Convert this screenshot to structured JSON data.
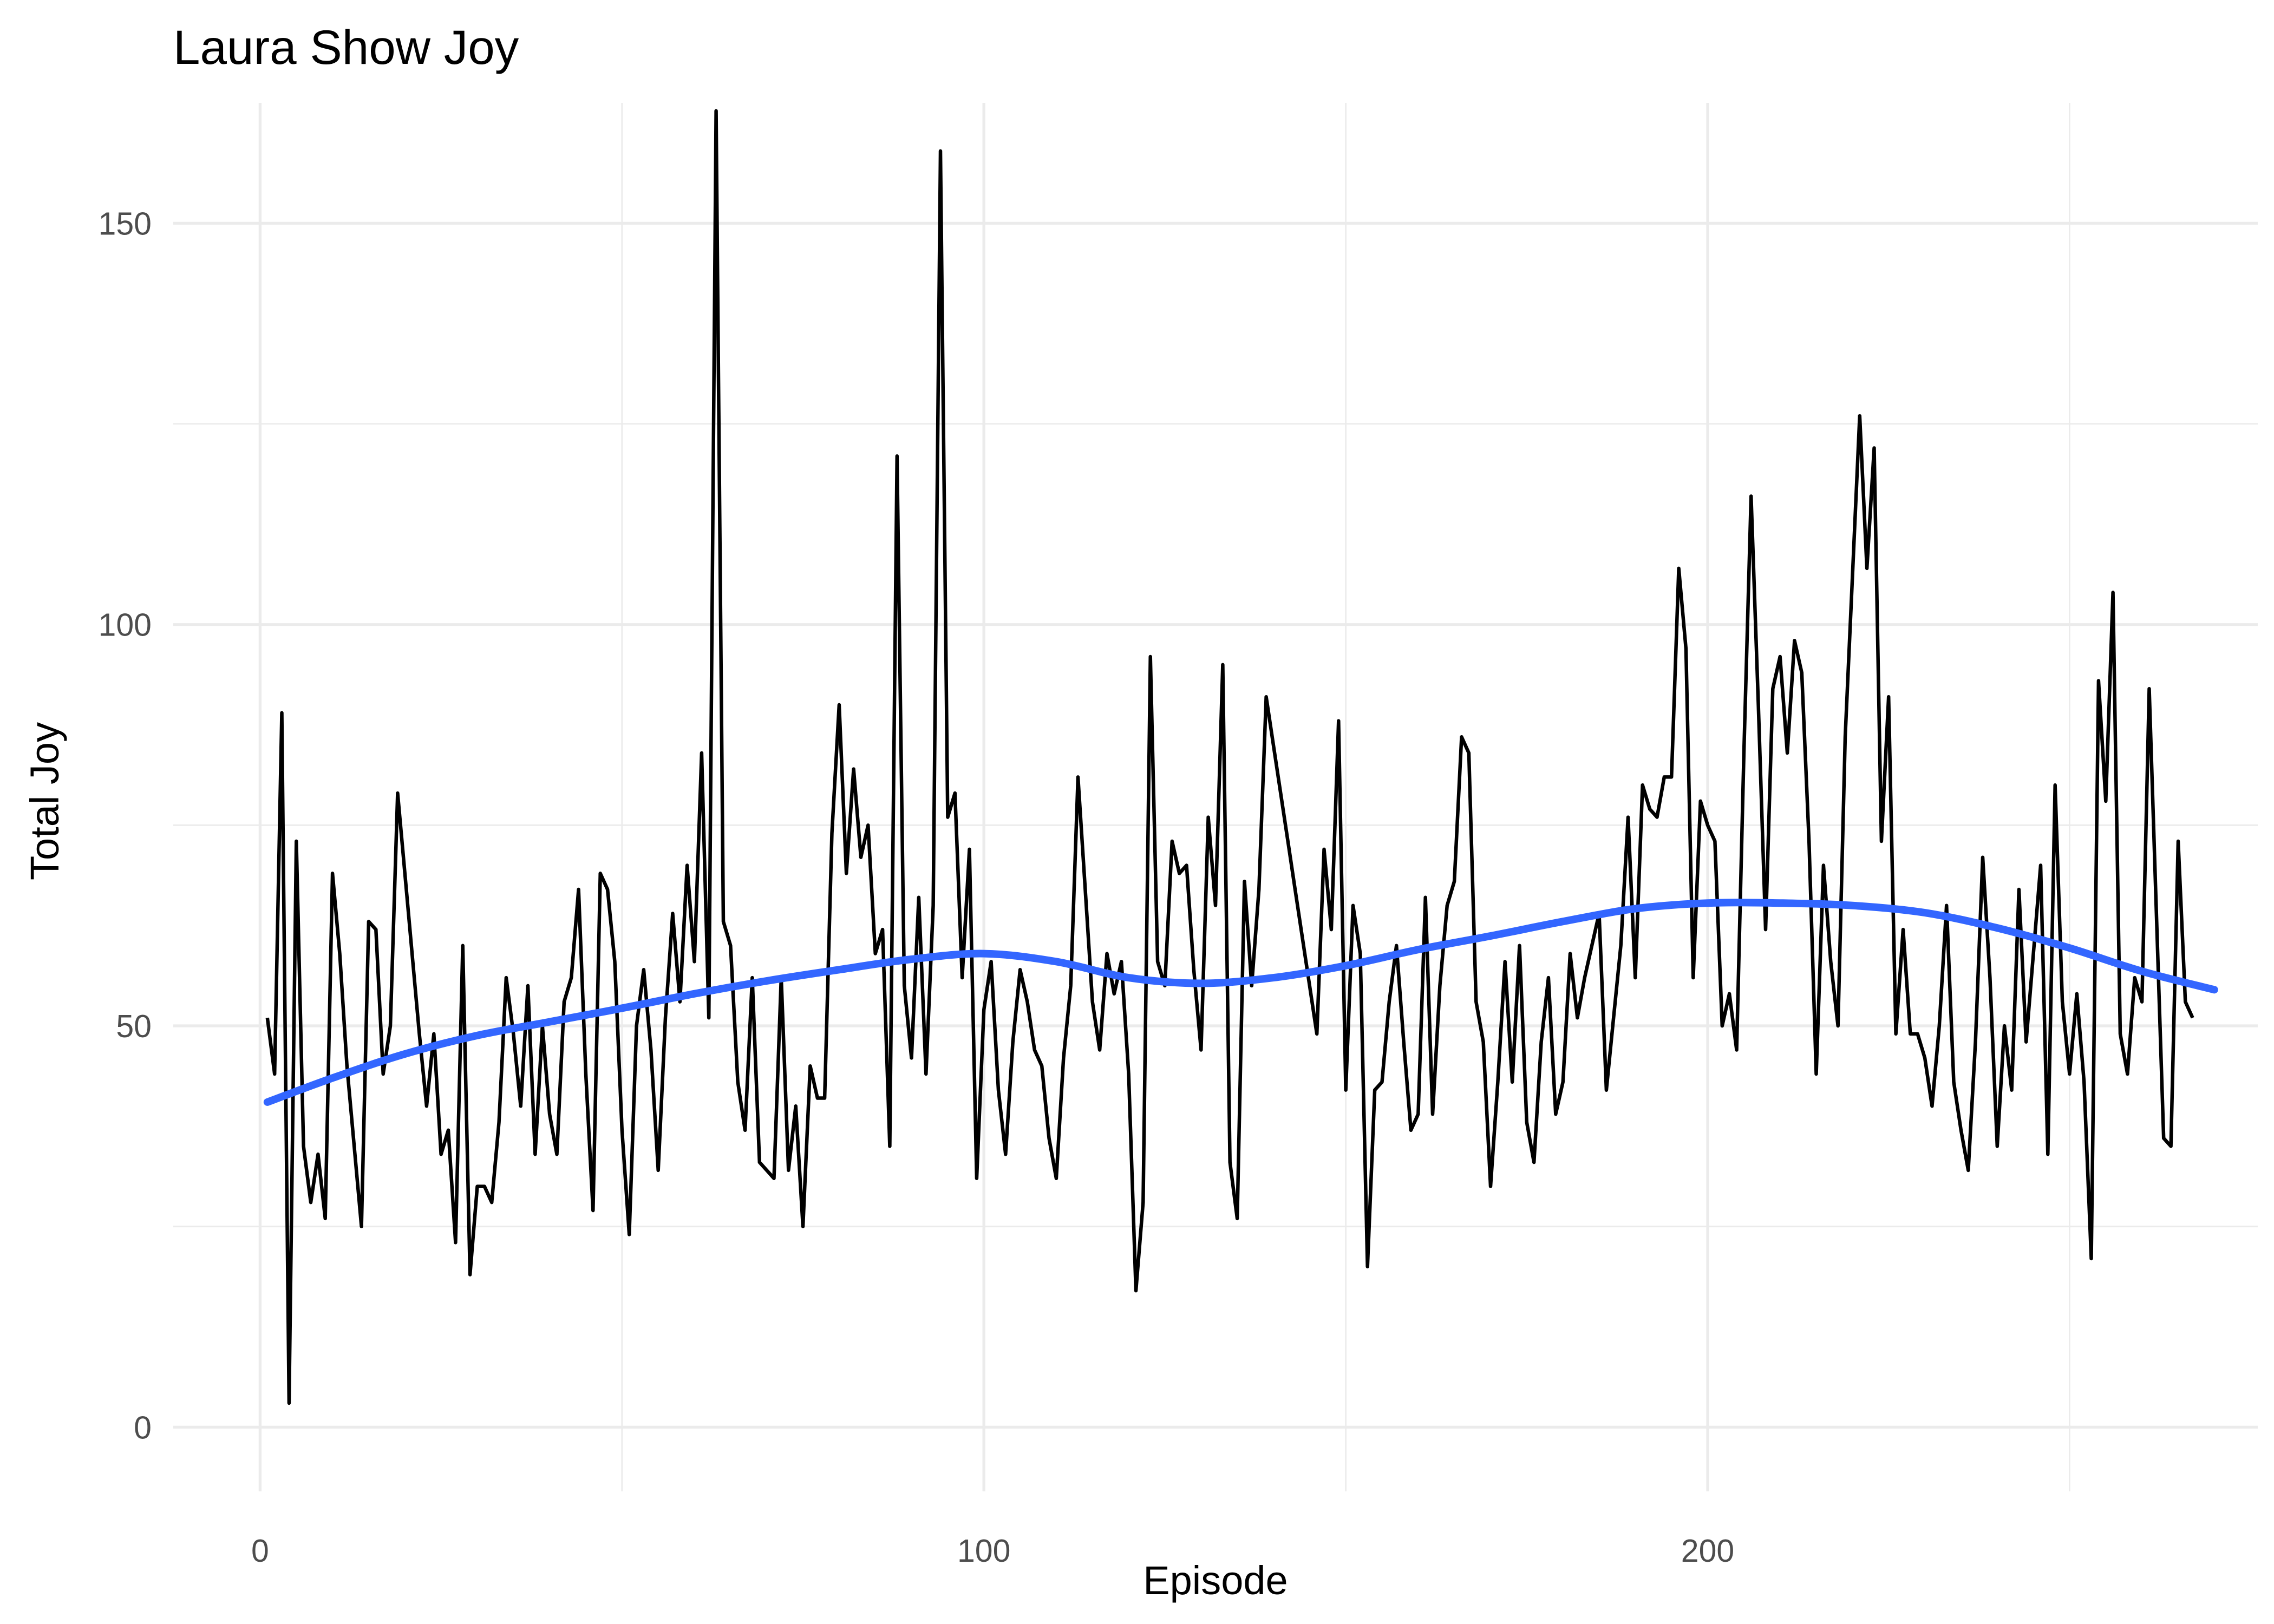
{
  "chart_data": {
    "type": "line",
    "title": "Laura Show Joy",
    "xlabel": "Episode",
    "ylabel": "Total Joy",
    "xlim": [
      -12,
      276
    ],
    "ylim": [
      -8,
      165
    ],
    "x_ticks": [
      0,
      100,
      200
    ],
    "y_ticks": [
      0,
      50,
      100,
      150
    ],
    "x_minor": [
      50,
      150,
      250
    ],
    "y_minor": [
      25,
      75,
      125
    ],
    "x_tick_labels": [
      "0",
      "100",
      "200"
    ],
    "y_tick_labels": [
      "0",
      "50",
      "100",
      "150"
    ],
    "series": [
      {
        "name": "Total Joy",
        "color": "#000000",
        "x_start": 1,
        "values": [
          51,
          44,
          89,
          3,
          73,
          35,
          28,
          34,
          26,
          69,
          59,
          45,
          35,
          25,
          63,
          62,
          44,
          50,
          79,
          69,
          59,
          49,
          40,
          49,
          34,
          37,
          23,
          60,
          19,
          30,
          30,
          28,
          38,
          56,
          49,
          40,
          55,
          34,
          50,
          39,
          34,
          53,
          56,
          67,
          44,
          27,
          69,
          67,
          58,
          37,
          24,
          50,
          57,
          47,
          32,
          51,
          64,
          53,
          70,
          58,
          84,
          51,
          164,
          63,
          60,
          43,
          37,
          56,
          33,
          32,
          31,
          56,
          32,
          40,
          25,
          45,
          41,
          41,
          74,
          90,
          69,
          82,
          71,
          75,
          59,
          62,
          35,
          121,
          55,
          46,
          66,
          44,
          65,
          159,
          76,
          79,
          56,
          72,
          31,
          52,
          58,
          42,
          34,
          48,
          57,
          53,
          47,
          45,
          36,
          31,
          46,
          55,
          81,
          67,
          53,
          47,
          59,
          54,
          58,
          44,
          17,
          28,
          96,
          58,
          55,
          73,
          69,
          70,
          57,
          47,
          76,
          65,
          95,
          33,
          26,
          68,
          55,
          67,
          91,
          85,
          79,
          73,
          67,
          61,
          55,
          49,
          72,
          62,
          88,
          42,
          65,
          59,
          20,
          42,
          43,
          53,
          60,
          48,
          37,
          39,
          66,
          39,
          55,
          65,
          68,
          86,
          84,
          53,
          48,
          30,
          43,
          58,
          43,
          60,
          38,
          33,
          48,
          56,
          39,
          43,
          59,
          51,
          56,
          60,
          64,
          42,
          51,
          60,
          76,
          56,
          80,
          77,
          76,
          81,
          81,
          107,
          97,
          56,
          78,
          75,
          73,
          50,
          54,
          47,
          84,
          116,
          90,
          62,
          92,
          96,
          84,
          98,
          94,
          73,
          44,
          70,
          58,
          50,
          86,
          106,
          126,
          107,
          122,
          73,
          91,
          49,
          62,
          49,
          49,
          46,
          40,
          50,
          65,
          43,
          37,
          32,
          48,
          71,
          56,
          35,
          50,
          42,
          67,
          48,
          59,
          70,
          34,
          80,
          53,
          44,
          54,
          43,
          21,
          93,
          78,
          104,
          49,
          44,
          56,
          53,
          92,
          64,
          36,
          35,
          73,
          53,
          51
        ]
      },
      {
        "name": "Smoothed trend",
        "color": "#3366ff",
        "x": [
          1,
          10,
          20,
          30,
          40,
          50,
          60,
          70,
          80,
          90,
          100,
          110,
          120,
          130,
          140,
          150,
          160,
          170,
          180,
          190,
          200,
          210,
          220,
          230,
          240,
          250,
          260,
          270
        ],
        "values": [
          40.5,
          43.5,
          46.5,
          48.8,
          50.5,
          52.2,
          54.0,
          55.6,
          57.0,
          58.3,
          59.0,
          58.0,
          56.0,
          55.3,
          56.0,
          57.5,
          59.5,
          61.2,
          63.0,
          64.6,
          65.3,
          65.3,
          65.0,
          64.1,
          62.2,
          59.7,
          56.8,
          54.5
        ]
      }
    ]
  }
}
